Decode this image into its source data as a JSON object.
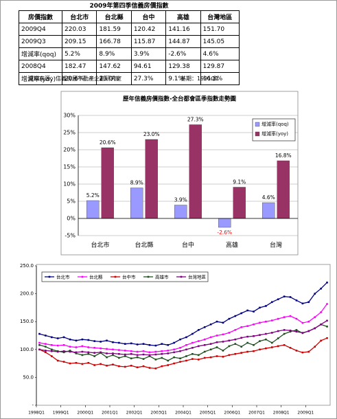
{
  "table": {
    "title": "2009年第四季信義房價指數",
    "header": [
      "房價指數",
      "台北市",
      "台北縣",
      "台中",
      "高雄",
      "台灣地區"
    ],
    "rows": [
      [
        "2009Q4",
        "220.03",
        "181.59",
        "120.42",
        "141.16",
        "151.70"
      ],
      [
        "2009Q3",
        "209.15",
        "166.78",
        "115.87",
        "144.87",
        "145.05"
      ],
      [
        "增減率(qoq)",
        "5.2%",
        "8.9%",
        "3.9%",
        "-2.6%",
        "4.6%"
      ],
      [
        "2008Q4",
        "182.47",
        "147.62",
        "94.61",
        "129.38",
        "129.87"
      ],
      [
        "增減率(yoy)",
        "20.6%",
        "23.0%",
        "27.3%",
        "9.1%",
        "16.8%"
      ]
    ],
    "source": "資料來源：信義房屋不動產企劃研究室",
    "base": "基期：1991Q1"
  },
  "chart_data": [
    {
      "type": "bar",
      "title": "歷年信義房價指數-全台都會區季指數走勢圖",
      "categories": [
        "台北市",
        "台北縣",
        "台中",
        "高雄",
        "台灣"
      ],
      "series": [
        {
          "name": "增減率(qoq)",
          "color": "#9999ff",
          "values": [
            5.2,
            8.9,
            3.9,
            -2.6,
            4.6
          ],
          "value_labels": [
            "5.2%",
            "8.9%",
            "3.9%",
            "-2.6%",
            "4.6%"
          ]
        },
        {
          "name": "增減率(yoy)",
          "color": "#993366",
          "values": [
            20.6,
            23.0,
            27.3,
            9.1,
            16.8
          ],
          "value_labels": [
            "20.6%",
            "23.0%",
            "27.3%",
            "9.1%",
            "16.8%"
          ]
        }
      ],
      "ylim": [
        -5,
        30
      ],
      "yticks": [
        {
          "value": -5,
          "label": "-5%"
        },
        {
          "value": 0,
          "label": "0%"
        },
        {
          "value": 5,
          "label": "5%"
        },
        {
          "value": 10,
          "label": "10%"
        },
        {
          "value": 15,
          "label": "15%"
        },
        {
          "value": 20,
          "label": "20%"
        },
        {
          "value": 25,
          "label": "25%"
        },
        {
          "value": 30,
          "label": "30%"
        }
      ],
      "grid": true,
      "legend": "upper-right"
    },
    {
      "type": "line",
      "categories": [
        "1998Q1",
        null,
        null,
        null,
        "1999Q1",
        null,
        null,
        null,
        "2000Q1",
        null,
        null,
        null,
        "2001Q1",
        null,
        null,
        null,
        "2002Q1",
        null,
        null,
        null,
        "2003Q1",
        null,
        null,
        null,
        "2004Q1",
        null,
        null,
        null,
        "2005Q1",
        null,
        null,
        null,
        "2006Q1",
        null,
        null,
        null,
        "2007Q1",
        null,
        null,
        null,
        "2008Q1",
        null,
        null,
        null,
        "2009Q1",
        null,
        null,
        null
      ],
      "series": [
        {
          "name": "台北市",
          "color": "#000080",
          "values": [
            128,
            125,
            122,
            120,
            122,
            118,
            116,
            118,
            117,
            115,
            114,
            116,
            113,
            112,
            110,
            111,
            109,
            110,
            108,
            107,
            110,
            108,
            112,
            118,
            122,
            128,
            135,
            140,
            145,
            150,
            148,
            155,
            160,
            165,
            170,
            168,
            175,
            178,
            185,
            190,
            195,
            194,
            188,
            182.47,
            185,
            200,
            209.15,
            220.03
          ]
        },
        {
          "name": "台北縣",
          "color": "#ff00ff",
          "values": [
            112,
            110,
            108,
            107,
            108,
            105,
            104,
            106,
            104,
            103,
            102,
            101,
            100,
            99,
            98,
            97,
            96,
            97,
            95,
            96,
            97,
            98,
            100,
            103,
            108,
            112,
            115,
            118,
            122,
            125,
            127,
            130,
            135,
            140,
            142,
            145,
            148,
            150,
            152,
            155,
            158,
            160,
            155,
            147.62,
            150,
            158,
            166.78,
            181.59
          ]
        },
        {
          "name": "台中市",
          "color": "#cc0000",
          "values": [
            100,
            95,
            88,
            80,
            78,
            75,
            76,
            74,
            76,
            72,
            74,
            71,
            73,
            70,
            69,
            71,
            68,
            70,
            67,
            66,
            70,
            72,
            75,
            78,
            80,
            83,
            82,
            85,
            86,
            88,
            87,
            90,
            92,
            94,
            96,
            97,
            100,
            102,
            104,
            106,
            108,
            103,
            98,
            94.61,
            96,
            105,
            115.87,
            120.42
          ]
        },
        {
          "name": "高雄市",
          "color": "#1f4f1f",
          "values": [
            108,
            105,
            100,
            97,
            95,
            98,
            93,
            90,
            92,
            88,
            94,
            86,
            90,
            85,
            88,
            84,
            86,
            83,
            88,
            82,
            85,
            80,
            86,
            84,
            88,
            92,
            90,
            96,
            100,
            104,
            98,
            106,
            110,
            105,
            112,
            108,
            115,
            118,
            112,
            120,
            128,
            132,
            135,
            129.38,
            133,
            138,
            144.87,
            141.16
          ]
        },
        {
          "name": "台灣地區",
          "color": "#800080",
          "values": [
            100,
            98,
            97,
            96,
            97,
            96,
            95,
            96,
            95,
            94,
            95,
            93,
            93,
            92,
            91,
            92,
            90,
            91,
            90,
            91,
            92,
            93,
            95,
            97,
            100,
            103,
            106,
            108,
            110,
            113,
            114,
            116,
            118,
            121,
            123,
            124,
            126,
            128,
            130,
            133,
            135,
            134,
            132,
            129.87,
            133,
            138,
            145.05,
            151.7
          ]
        }
      ],
      "ylim": [
        0,
        250
      ],
      "yticks": [
        {
          "value": 0,
          "label": "-"
        },
        {
          "value": 50,
          "label": "50.0"
        },
        {
          "value": 100,
          "label": "100.0"
        },
        {
          "value": 150,
          "label": "150.0"
        },
        {
          "value": 200,
          "label": "200.0"
        },
        {
          "value": 250,
          "label": "250.0"
        }
      ],
      "grid": false,
      "legend": "upper-left"
    }
  ]
}
